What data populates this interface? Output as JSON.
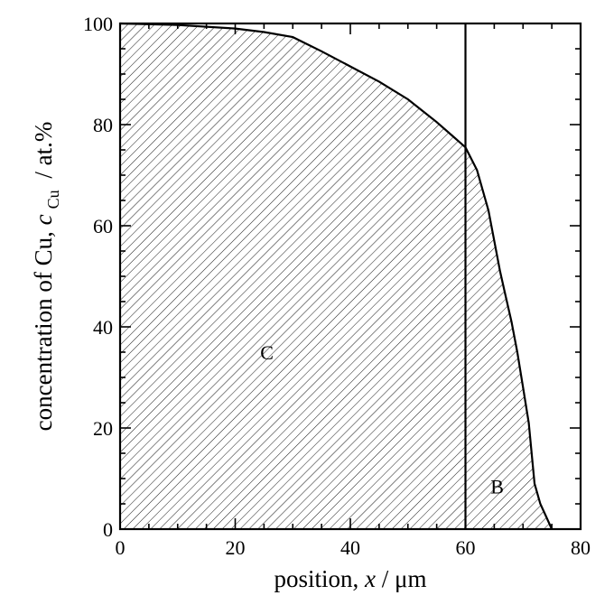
{
  "chart_data": {
    "type": "area",
    "xlabel_parts": {
      "prefix": "position, ",
      "var": "x",
      "suffix": " / μm"
    },
    "ylabel_parts": {
      "prefix": "concentration of Cu, ",
      "var": "c",
      "sub": "Cu",
      "suffix": " / at.%"
    },
    "xlim": [
      0,
      80
    ],
    "ylim": [
      0,
      100
    ],
    "xticks": [
      0,
      20,
      40,
      60,
      80
    ],
    "yticks": [
      0,
      20,
      40,
      60,
      80,
      100
    ],
    "grid": false,
    "series": [
      {
        "x": [
          0,
          10,
          20,
          25,
          30,
          35,
          40,
          45,
          50,
          55,
          58,
          60,
          62,
          64,
          66,
          67,
          68,
          69,
          70,
          71,
          72,
          73,
          74,
          75
        ],
        "y": [
          100,
          99.7,
          99,
          98.3,
          97.3,
          94.5,
          91.5,
          88.5,
          85,
          80.5,
          77.5,
          75.5,
          71,
          63,
          51,
          46,
          41,
          35,
          28,
          21,
          9,
          5,
          2.5,
          0
        ]
      }
    ],
    "vertical_line_x": 60,
    "annotations": [
      {
        "text": "C",
        "x": 25.5,
        "y": 35
      },
      {
        "text": "B",
        "x": 65.5,
        "y": 8.5
      }
    ]
  }
}
